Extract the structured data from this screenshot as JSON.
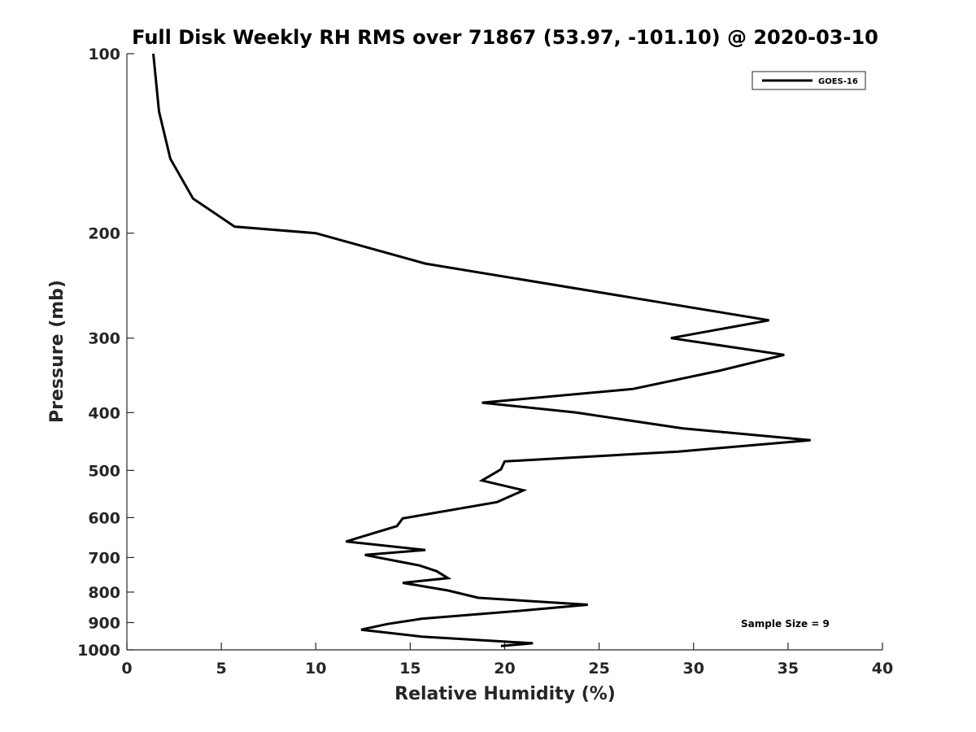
{
  "chart_data": {
    "type": "line",
    "title": "Full Disk Weekly RH RMS over 71867 (53.97, -101.10) @ 2020-03-10",
    "xlabel": "Relative Humidity (%)",
    "ylabel": "Pressure (mb)",
    "xlim": [
      0,
      40
    ],
    "ylim": [
      100,
      1000
    ],
    "y_scale": "log",
    "y_reversed": true,
    "x_ticks": [
      0,
      5,
      10,
      15,
      20,
      25,
      30,
      35,
      40
    ],
    "y_ticks": [
      100,
      200,
      300,
      400,
      500,
      600,
      700,
      800,
      900,
      1000
    ],
    "grid": false,
    "legend_position": "top-right",
    "annotation": "Sample Size = 9",
    "series": [
      {
        "name": "GOES-16",
        "color": "#000000",
        "points": [
          [
            1.4,
            100
          ],
          [
            1.7,
            125
          ],
          [
            2.3,
            150
          ],
          [
            3.5,
            175
          ],
          [
            5.7,
            195
          ],
          [
            10.0,
            200
          ],
          [
            15.8,
            225
          ],
          [
            29.4,
            265
          ],
          [
            34.0,
            280
          ],
          [
            28.8,
            300
          ],
          [
            34.8,
            320
          ],
          [
            31.4,
            340
          ],
          [
            26.8,
            365
          ],
          [
            18.8,
            385
          ],
          [
            23.8,
            400
          ],
          [
            29.4,
            425
          ],
          [
            36.2,
            445
          ],
          [
            29.2,
            465
          ],
          [
            20.0,
            483
          ],
          [
            19.8,
            498
          ],
          [
            18.8,
            520
          ],
          [
            21.0,
            540
          ],
          [
            19.6,
            565
          ],
          [
            14.6,
            602
          ],
          [
            14.3,
            620
          ],
          [
            11.6,
            658
          ],
          [
            15.8,
            680
          ],
          [
            12.6,
            693
          ],
          [
            15.5,
            722
          ],
          [
            16.4,
            738
          ],
          [
            17.0,
            758
          ],
          [
            14.6,
            772
          ],
          [
            17.0,
            795
          ],
          [
            18.6,
            818
          ],
          [
            24.4,
            840
          ],
          [
            20.8,
            860
          ],
          [
            15.6,
            887
          ],
          [
            13.8,
            905
          ],
          [
            12.4,
            925
          ],
          [
            15.6,
            950
          ],
          [
            21.5,
            975
          ],
          [
            19.8,
            985
          ]
        ]
      }
    ]
  }
}
